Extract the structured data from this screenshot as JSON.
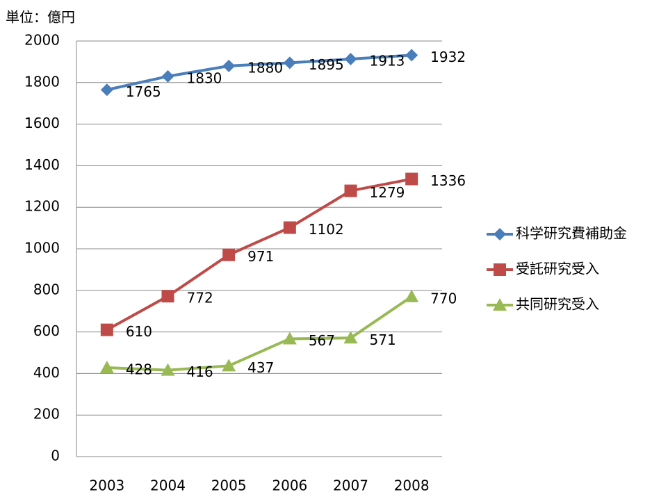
{
  "chart_data": {
    "type": "line",
    "unit_label": "単位：億円",
    "categories": [
      "2003",
      "2004",
      "2005",
      "2006",
      "2007",
      "2008"
    ],
    "series": [
      {
        "name": "科学研究費補助金",
        "color": "#4a7ebb",
        "marker": "diamond",
        "values": [
          1765,
          1830,
          1880,
          1895,
          1913,
          1932
        ]
      },
      {
        "name": "受託研究受入",
        "color": "#be4b48",
        "marker": "square",
        "values": [
          610,
          772,
          971,
          1102,
          1279,
          1336
        ]
      },
      {
        "name": "共同研究受入",
        "color": "#98b954",
        "marker": "triangle",
        "values": [
          428,
          416,
          437,
          567,
          571,
          770
        ]
      }
    ],
    "ylim": [
      0,
      2000
    ],
    "yticks": [
      0,
      200,
      400,
      600,
      800,
      1000,
      1200,
      1400,
      1600,
      1800,
      2000
    ],
    "grid": true,
    "legend": "right",
    "data_labels": true
  }
}
